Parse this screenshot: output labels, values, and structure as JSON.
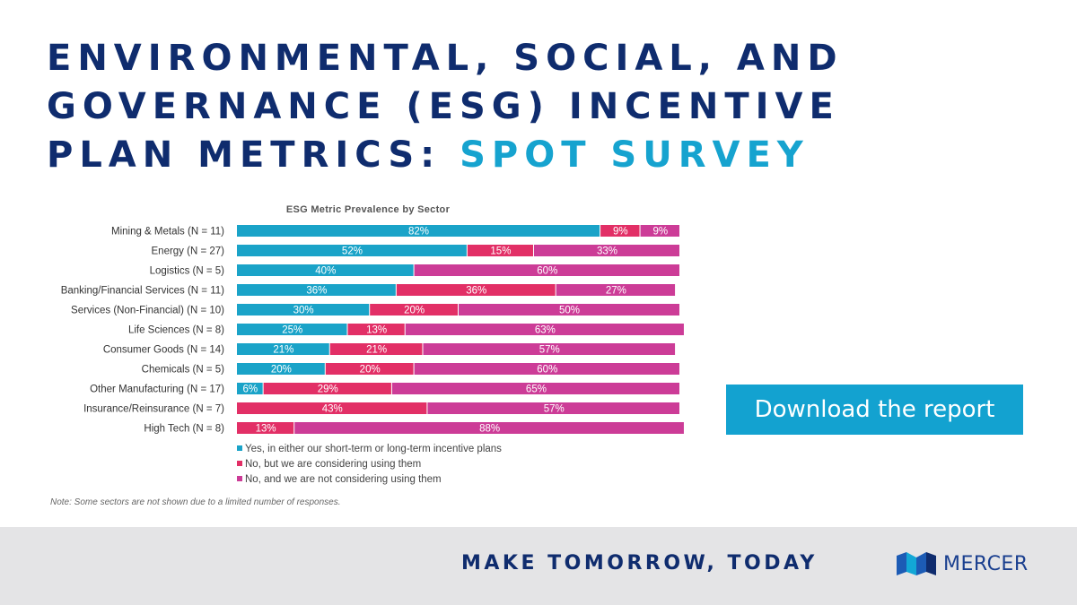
{
  "headline": {
    "line1": "ENVIRONMENTAL, SOCIAL, AND",
    "line2": "GOVERNANCE (ESG) INCENTIVE",
    "line3_main": "PLAN METRICS: ",
    "line3_accent": "SPOT SURVEY"
  },
  "chart_data": {
    "type": "bar",
    "orientation": "horizontal",
    "stacked": true,
    "title": "ESG Metric Prevalence by Sector",
    "categories": [
      "Mining & Metals (N = 11)",
      "Energy (N = 27)",
      "Logistics (N = 5)",
      "Banking/Financial Services (N = 11)",
      "Services (Non-Financial) (N = 10)",
      "Life Sciences (N = 8)",
      "Consumer Goods (N = 14)",
      "Chemicals (N = 5)",
      "Other Manufacturing (N = 17)",
      "Insurance/Reinsurance (N = 7)",
      "High Tech (N = 8)"
    ],
    "series": [
      {
        "name": "Yes, in either our short-term or long-term incentive plans",
        "color": "#1aa3c8",
        "values": [
          82,
          52,
          40,
          36,
          30,
          25,
          21,
          20,
          6,
          0,
          0
        ],
        "labels": [
          "82%",
          "52%",
          "40%",
          "36%",
          "30%",
          "25%",
          "21%",
          "20%",
          "6%",
          "",
          ""
        ]
      },
      {
        "name": "No, but we are considering using them",
        "color": "#e22f66",
        "values": [
          9,
          15,
          0,
          36,
          20,
          13,
          21,
          20,
          29,
          43,
          13
        ],
        "labels": [
          "9%",
          "15%",
          "",
          "36%",
          "20%",
          "13%",
          "21%",
          "20%",
          "29%",
          "43%",
          "13%"
        ]
      },
      {
        "name": "No, and we are not considering using them",
        "color": "#cc3c97",
        "values": [
          9,
          33,
          60,
          27,
          50,
          63,
          57,
          60,
          65,
          57,
          88
        ],
        "labels": [
          "9%",
          "33%",
          "60%",
          "27%",
          "50%",
          "63%",
          "57%",
          "60%",
          "65%",
          "57%",
          "88%"
        ]
      }
    ],
    "xlim": [
      0,
      100
    ],
    "grid": false,
    "legend_position": "bottom",
    "note": "Note: Some sectors are not shown due to a limited number of responses."
  },
  "cta": {
    "label": "Download the report"
  },
  "footer": {
    "tagline": "MAKE TOMORROW, TODAY",
    "brand": "MERCER",
    "logo_icon": "mercer-logo-icon"
  }
}
